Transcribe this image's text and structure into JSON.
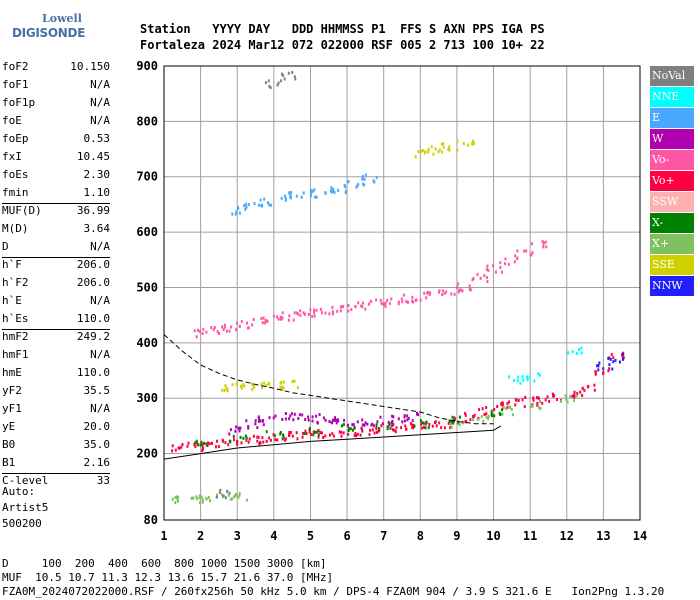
{
  "logo": {
    "line1": "Lowell",
    "line2": "DIGISONDE"
  },
  "header": {
    "line1": "Station   YYYY DAY   DDD HHMMSS P1  FFS S AXN PPS IGA PS",
    "line2": "Fortaleza 2024 Mar12 072 022000 RSF 005 2 713 100 10+ 22"
  },
  "params": [
    {
      "k": "foF2",
      "v": "10.150"
    },
    {
      "k": "foF1",
      "v": "N/A"
    },
    {
      "k": "foF1p",
      "v": "N/A"
    },
    {
      "k": "foE",
      "v": "N/A"
    },
    {
      "k": "foEp",
      "v": "0.53"
    },
    {
      "k": "fxI",
      "v": "10.45"
    },
    {
      "k": "foEs",
      "v": "2.30"
    },
    {
      "k": "fmin",
      "v": "1.10"
    },
    {
      "k": "MUF(D)",
      "v": "36.99"
    },
    {
      "k": "M(D)",
      "v": "3.64"
    },
    {
      "k": "D",
      "v": "N/A"
    },
    {
      "k": "h`F",
      "v": "206.0"
    },
    {
      "k": "h`F2",
      "v": "206.0"
    },
    {
      "k": "h`E",
      "v": "N/A"
    },
    {
      "k": "h`Es",
      "v": "110.0"
    },
    {
      "k": "hmF2",
      "v": "249.2"
    },
    {
      "k": "hmF1",
      "v": "N/A"
    },
    {
      "k": "hmE",
      "v": "110.0"
    },
    {
      "k": "yF2",
      "v": "35.5"
    },
    {
      "k": "yF1",
      "v": "N/A"
    },
    {
      "k": "yE",
      "v": "20.0"
    },
    {
      "k": "B0",
      "v": "35.0"
    },
    {
      "k": "B1",
      "v": "2.16"
    },
    {
      "k": "C-level",
      "v": "33"
    }
  ],
  "auto": {
    "line1": "Auto:",
    "line2": "Artist5",
    "line3": "500200"
  },
  "footer": {
    "line1": "D     100  200  400  600  800 1000 1500 3000 [km]",
    "line2": "MUF  10.5 10.7 11.3 12.3 13.6 15.7 21.6 37.0 [MHz]",
    "line3": "FZA0M_2024072022000.RSF / 260fx256h 50 kHz 5.0 km / DPS-4 FZA0M 904 / 3.9 S 321.6 E   Ion2Png 1.3.20"
  },
  "legend": [
    {
      "label": "NoVal",
      "color": "#808080"
    },
    {
      "label": "NNE",
      "color": "#00ffff"
    },
    {
      "label": "E",
      "color": "#4ba8ff"
    },
    {
      "label": "W",
      "color": "#b000b0"
    },
    {
      "label": "Vo-",
      "color": "#ff55a5"
    },
    {
      "label": "Vo+",
      "color": "#ff0040"
    },
    {
      "label": "SSW",
      "color": "#ffb0b0"
    },
    {
      "label": "X-",
      "color": "#008000"
    },
    {
      "label": "X+",
      "color": "#80c060"
    },
    {
      "label": "SSE",
      "color": "#d0d000"
    },
    {
      "label": "NNW",
      "color": "#2020ff"
    }
  ],
  "chart_data": {
    "type": "scatter",
    "xlim": [
      1,
      14
    ],
    "ylim": [
      80,
      900
    ],
    "xticks": [
      1,
      2,
      3,
      4,
      5,
      6,
      7,
      8,
      9,
      10,
      11,
      12,
      13,
      14
    ],
    "yticks": [
      80,
      200,
      300,
      400,
      500,
      600,
      700,
      800,
      900
    ],
    "grid": true,
    "traces": [
      {
        "name": "Vo+",
        "color": "#ff0040",
        "points": [
          [
            1.4,
            213
          ],
          [
            1.8,
            215
          ],
          [
            2.2,
            218
          ],
          [
            2.6,
            221
          ],
          [
            3.0,
            224
          ],
          [
            3.4,
            227
          ],
          [
            3.8,
            230
          ],
          [
            4.2,
            232
          ],
          [
            4.6,
            234
          ],
          [
            5.0,
            236
          ],
          [
            5.4,
            238
          ],
          [
            5.8,
            240
          ],
          [
            6.2,
            242
          ],
          [
            6.6,
            244
          ],
          [
            7.0,
            246
          ],
          [
            7.4,
            248
          ],
          [
            7.8,
            250
          ],
          [
            8.2,
            252
          ],
          [
            8.6,
            256
          ],
          [
            9.0,
            262
          ],
          [
            9.4,
            270
          ],
          [
            9.8,
            280
          ],
          [
            10.2,
            288
          ],
          [
            10.6,
            293
          ],
          [
            11.0,
            297
          ],
          [
            11.4,
            300
          ],
          [
            11.8,
            305
          ],
          [
            12.2,
            310
          ],
          [
            12.6,
            320
          ],
          [
            13.0,
            350
          ],
          [
            13.3,
            380
          ]
        ]
      },
      {
        "name": "W",
        "color": "#b000b0",
        "points": [
          [
            3.0,
            245
          ],
          [
            3.4,
            255
          ],
          [
            3.8,
            262
          ],
          [
            4.2,
            268
          ],
          [
            4.6,
            270
          ],
          [
            5.0,
            266
          ],
          [
            5.4,
            262
          ],
          [
            5.8,
            258
          ],
          [
            6.2,
            255
          ],
          [
            6.6,
            258
          ],
          [
            7.0,
            262
          ],
          [
            7.4,
            266
          ],
          [
            7.8,
            268
          ]
        ]
      },
      {
        "name": "Vo-",
        "color": "#ff55a5",
        "points": [
          [
            2.0,
            420
          ],
          [
            2.4,
            425
          ],
          [
            2.8,
            430
          ],
          [
            3.2,
            436
          ],
          [
            3.6,
            442
          ],
          [
            4.0,
            446
          ],
          [
            4.4,
            450
          ],
          [
            4.8,
            454
          ],
          [
            5.2,
            458
          ],
          [
            5.6,
            462
          ],
          [
            6.0,
            466
          ],
          [
            6.4,
            470
          ],
          [
            6.8,
            474
          ],
          [
            7.2,
            478
          ],
          [
            7.6,
            482
          ],
          [
            8.0,
            486
          ],
          [
            8.4,
            490
          ],
          [
            8.8,
            496
          ],
          [
            9.2,
            502
          ],
          [
            9.6,
            520
          ],
          [
            10.0,
            535
          ],
          [
            10.4,
            550
          ],
          [
            10.8,
            565
          ],
          [
            11.2,
            580
          ]
        ]
      },
      {
        "name": "E",
        "color": "#4ba8ff",
        "points": [
          [
            3.0,
            640
          ],
          [
            3.4,
            648
          ],
          [
            3.8,
            656
          ],
          [
            4.2,
            664
          ],
          [
            4.6,
            668
          ],
          [
            5.0,
            672
          ],
          [
            5.4,
            676
          ],
          [
            5.8,
            680
          ],
          [
            6.2,
            690
          ],
          [
            6.6,
            700
          ]
        ]
      },
      {
        "name": "SSE",
        "color": "#d0d000",
        "points": [
          [
            2.8,
            322
          ],
          [
            3.2,
            323
          ],
          [
            3.6,
            324
          ],
          [
            4.0,
            325
          ],
          [
            4.4,
            327
          ],
          [
            8.0,
            745
          ],
          [
            8.4,
            750
          ],
          [
            8.8,
            755
          ],
          [
            9.2,
            760
          ]
        ]
      },
      {
        "name": "X+",
        "color": "#80c060",
        "points": [
          [
            1.4,
            120
          ],
          [
            1.8,
            121
          ],
          [
            2.2,
            122
          ],
          [
            2.6,
            123
          ],
          [
            3.0,
            125
          ],
          [
            9.0,
            255
          ],
          [
            9.6,
            265
          ],
          [
            10.4,
            280
          ],
          [
            11.2,
            290
          ],
          [
            12.0,
            300
          ]
        ]
      },
      {
        "name": "X-",
        "color": "#008000",
        "points": [
          [
            2.0,
            218
          ],
          [
            3.0,
            228
          ],
          [
            4.0,
            236
          ],
          [
            5.0,
            242
          ],
          [
            6.0,
            248
          ],
          [
            7.0,
            252
          ],
          [
            8.0,
            256
          ],
          [
            9.0,
            262
          ],
          [
            10.0,
            275
          ]
        ]
      },
      {
        "name": "NNE",
        "color": "#00ffff",
        "points": [
          [
            10.6,
            335
          ],
          [
            11.0,
            340
          ],
          [
            12.2,
            390
          ]
        ]
      },
      {
        "name": "NNW",
        "color": "#2020ff",
        "points": [
          [
            13.0,
            360
          ],
          [
            13.3,
            375
          ]
        ]
      },
      {
        "name": "NoVal",
        "color": "#808080",
        "points": [
          [
            2.6,
            130
          ],
          [
            4.0,
            870
          ],
          [
            4.4,
            885
          ]
        ]
      }
    ],
    "profile_dashed": [
      [
        1.0,
        415
      ],
      [
        1.5,
        385
      ],
      [
        2.0,
        360
      ],
      [
        2.5,
        345
      ],
      [
        3.0,
        333
      ],
      [
        3.5,
        325
      ],
      [
        4.0,
        318
      ],
      [
        4.5,
        310
      ],
      [
        5.0,
        305
      ],
      [
        5.5,
        300
      ],
      [
        6.0,
        295
      ],
      [
        6.5,
        290
      ],
      [
        7.0,
        285
      ],
      [
        7.5,
        280
      ],
      [
        8.0,
        275
      ],
      [
        8.5,
        265
      ],
      [
        9.0,
        258
      ],
      [
        9.5,
        254
      ],
      [
        10.0,
        254
      ]
    ],
    "profile_solid": [
      [
        1.0,
        190
      ],
      [
        2.0,
        200
      ],
      [
        3.0,
        210
      ],
      [
        4.0,
        216
      ],
      [
        5.0,
        222
      ],
      [
        6.0,
        226
      ],
      [
        7.0,
        230
      ],
      [
        8.0,
        234
      ],
      [
        9.0,
        238
      ],
      [
        9.5,
        240
      ],
      [
        10.0,
        242
      ],
      [
        10.2,
        250
      ]
    ]
  }
}
